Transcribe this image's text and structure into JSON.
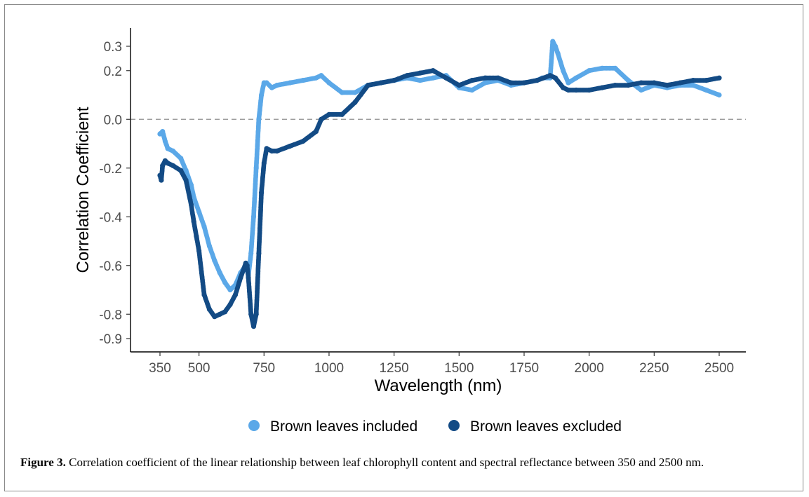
{
  "figure": {
    "caption_label": "Figure 3.",
    "caption_text": "Correlation coefficient of the linear relationship between leaf chlorophyll content and spectral reflectance between 350 and 2500 nm."
  },
  "chart_data": {
    "type": "scatter",
    "title": "",
    "xlabel": "Wavelength (nm)",
    "ylabel": "Correlation Coefficient",
    "xlim": [
      350,
      2500
    ],
    "ylim": [
      -0.9,
      0.3
    ],
    "xticks": [
      350,
      500,
      750,
      1000,
      1250,
      1500,
      1750,
      2000,
      2250,
      2500
    ],
    "xtick_labels": [
      "350",
      "500",
      "750",
      "1000",
      "1250",
      "1500",
      "1750",
      "2000",
      "2250",
      "2500"
    ],
    "yticks": [
      0.3,
      0.2,
      0.0,
      -0.2,
      -0.4,
      -0.6,
      -0.8,
      -0.9
    ],
    "ytick_labels": [
      "0.3",
      "0.2",
      "0.0",
      "-0.2",
      "-0.4",
      "-0.6",
      "-0.8",
      "-0.9"
    ],
    "reference_line": {
      "y": 0.0,
      "style": "dashed",
      "color": "#9e9e9e"
    },
    "grid": false,
    "legend_position": "bottom",
    "series": [
      {
        "name": "Brown leaves included",
        "color": "#5ba8e8",
        "x": [
          350,
          360,
          370,
          380,
          400,
          430,
          450,
          470,
          480,
          500,
          520,
          540,
          560,
          580,
          600,
          620,
          640,
          660,
          680,
          690,
          700,
          710,
          720,
          730,
          740,
          750,
          760,
          780,
          800,
          850,
          900,
          950,
          970,
          1000,
          1050,
          1100,
          1150,
          1200,
          1250,
          1300,
          1350,
          1400,
          1450,
          1500,
          1550,
          1600,
          1650,
          1700,
          1750,
          1800,
          1820,
          1850,
          1860,
          1870,
          1880,
          1900,
          1920,
          1950,
          2000,
          2050,
          2100,
          2150,
          2200,
          2250,
          2300,
          2350,
          2400,
          2450,
          2500
        ],
        "y": [
          -0.06,
          -0.05,
          -0.09,
          -0.12,
          -0.13,
          -0.16,
          -0.21,
          -0.27,
          -0.32,
          -0.38,
          -0.44,
          -0.52,
          -0.58,
          -0.63,
          -0.67,
          -0.7,
          -0.68,
          -0.63,
          -0.6,
          -0.64,
          -0.55,
          -0.4,
          -0.2,
          0.0,
          0.1,
          0.15,
          0.15,
          0.13,
          0.14,
          0.15,
          0.16,
          0.17,
          0.18,
          0.15,
          0.11,
          0.11,
          0.14,
          0.15,
          0.16,
          0.17,
          0.16,
          0.17,
          0.18,
          0.13,
          0.12,
          0.15,
          0.16,
          0.14,
          0.15,
          0.16,
          0.17,
          0.17,
          0.32,
          0.3,
          0.27,
          0.2,
          0.15,
          0.17,
          0.2,
          0.21,
          0.21,
          0.16,
          0.12,
          0.14,
          0.13,
          0.14,
          0.14,
          0.12,
          0.1
        ]
      },
      {
        "name": "Brown leaves excluded",
        "color": "#134b85",
        "x": [
          350,
          355,
          360,
          370,
          380,
          400,
          430,
          450,
          470,
          480,
          490,
          500,
          520,
          540,
          560,
          580,
          600,
          620,
          640,
          660,
          680,
          685,
          690,
          700,
          710,
          720,
          730,
          740,
          750,
          760,
          780,
          800,
          850,
          900,
          950,
          970,
          1000,
          1050,
          1100,
          1150,
          1200,
          1250,
          1300,
          1350,
          1400,
          1450,
          1500,
          1550,
          1600,
          1650,
          1700,
          1750,
          1800,
          1850,
          1870,
          1900,
          1920,
          1950,
          2000,
          2050,
          2100,
          2150,
          2200,
          2250,
          2300,
          2350,
          2400,
          2450,
          2500
        ],
        "y": [
          -0.23,
          -0.25,
          -0.19,
          -0.17,
          -0.18,
          -0.19,
          -0.21,
          -0.25,
          -0.35,
          -0.42,
          -0.48,
          -0.54,
          -0.72,
          -0.78,
          -0.81,
          -0.8,
          -0.79,
          -0.76,
          -0.72,
          -0.65,
          -0.59,
          -0.6,
          -0.65,
          -0.8,
          -0.85,
          -0.8,
          -0.55,
          -0.3,
          -0.18,
          -0.12,
          -0.13,
          -0.13,
          -0.11,
          -0.09,
          -0.05,
          0.0,
          0.02,
          0.02,
          0.07,
          0.14,
          0.15,
          0.16,
          0.18,
          0.19,
          0.2,
          0.17,
          0.14,
          0.16,
          0.17,
          0.17,
          0.15,
          0.15,
          0.16,
          0.18,
          0.17,
          0.13,
          0.12,
          0.12,
          0.12,
          0.13,
          0.14,
          0.14,
          0.15,
          0.15,
          0.14,
          0.15,
          0.16,
          0.16,
          0.17
        ]
      }
    ]
  }
}
